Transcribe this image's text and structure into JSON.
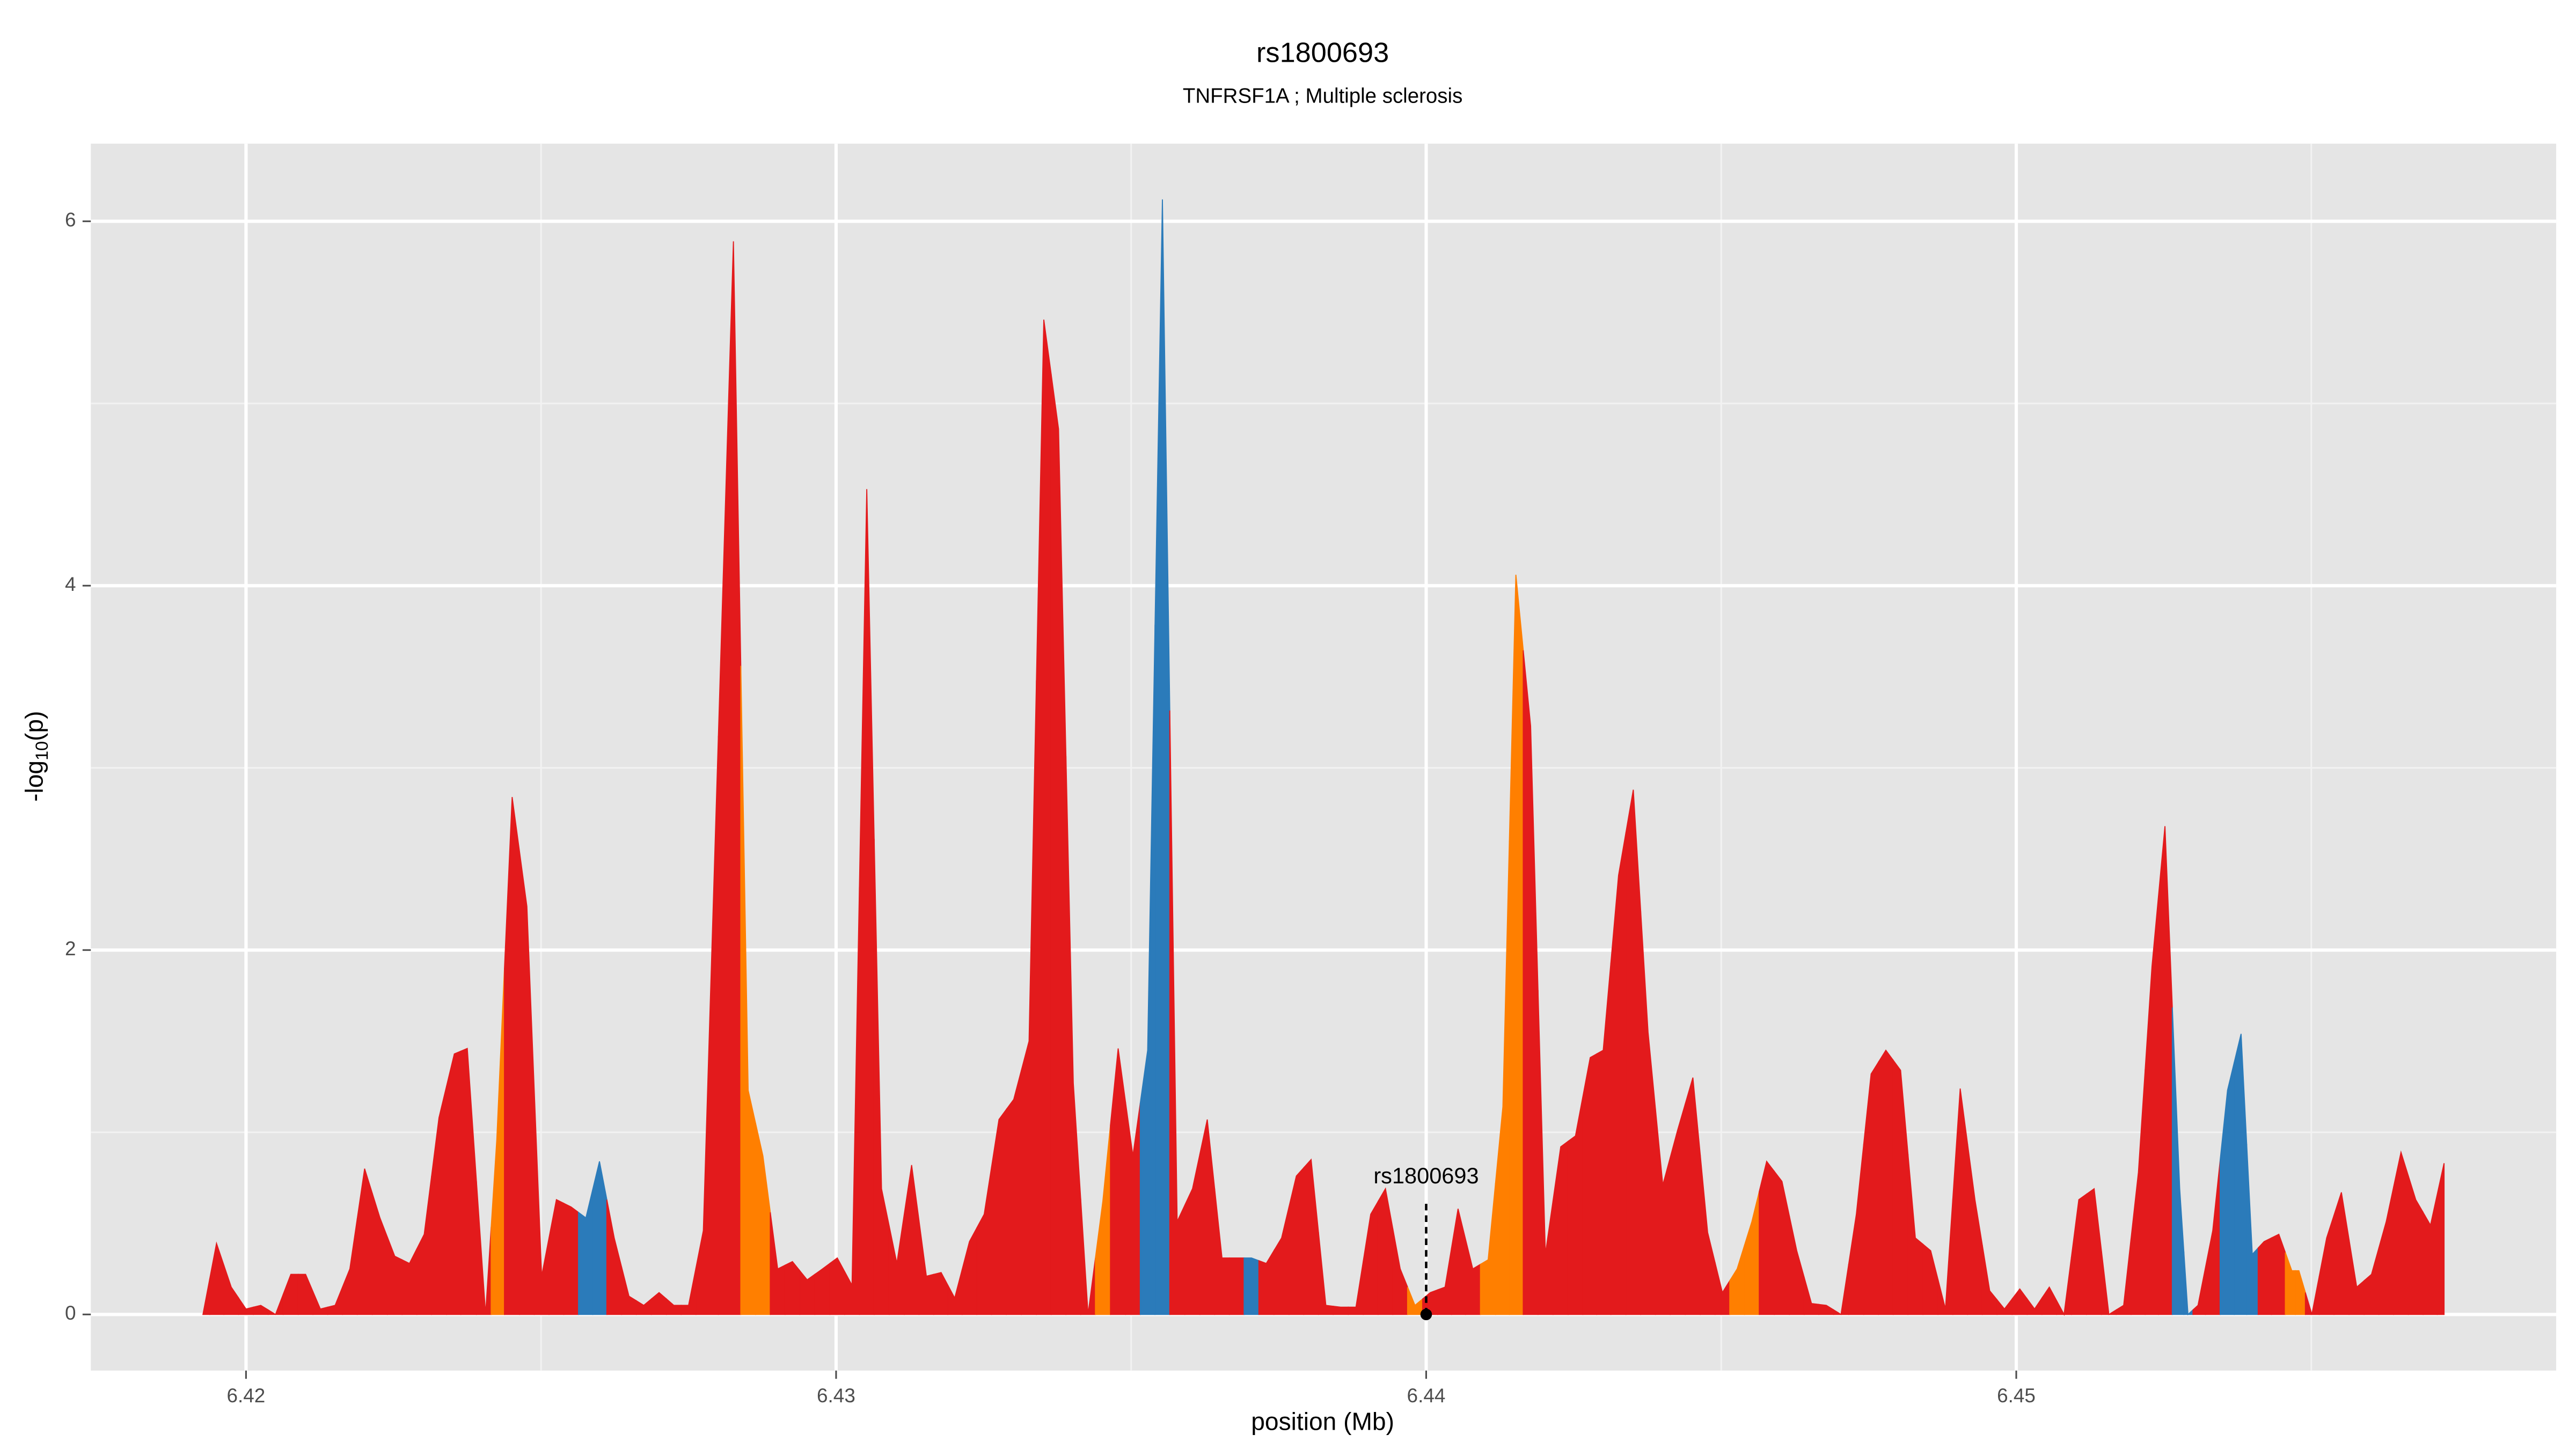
{
  "chart_data": {
    "type": "area",
    "title": "rs1800693",
    "subtitle": "TNFRSF1A ; Multiple sclerosis",
    "x_label": "position (Mb)",
    "y_label": {
      "text": "-log",
      "sub": "10",
      "after": "(p)"
    },
    "xlim": [
      6.41737,
      6.45915
    ],
    "ylim": [
      -0.308,
      6.426
    ],
    "xticks": [
      6.42,
      6.43,
      6.44,
      6.45
    ],
    "xminor": [
      6.425,
      6.435,
      6.445,
      6.455
    ],
    "yticks": [
      0,
      2,
      4,
      6
    ],
    "yminor": [
      1,
      3,
      5
    ],
    "grid": true,
    "x": [
      6.41927,
      6.4195,
      6.41975,
      6.42,
      6.42025,
      6.4205,
      6.42076,
      6.42101,
      6.42126,
      6.42151,
      6.42176,
      6.42201,
      6.42227,
      6.42252,
      6.42277,
      6.42302,
      6.42327,
      6.42353,
      6.42375,
      6.42406,
      6.42425,
      6.42451,
      6.42476,
      6.42501,
      6.42526,
      6.42551,
      6.42576,
      6.42599,
      6.42624,
      6.42649,
      6.42674,
      6.427,
      6.42725,
      6.4275,
      6.42775,
      6.42826,
      6.42851,
      6.42876,
      6.42901,
      6.42926,
      6.42951,
      6.42977,
      6.43002,
      6.43027,
      6.43052,
      6.43077,
      6.43103,
      6.43128,
      6.43153,
      6.43178,
      6.43201,
      6.43226,
      6.43251,
      6.43276,
      6.43301,
      6.43327,
      6.43352,
      6.43377,
      6.43402,
      6.43427,
      6.43452,
      6.43478,
      6.43503,
      6.43528,
      6.43553,
      6.43578,
      6.43604,
      6.43629,
      6.43654,
      6.43679,
      6.43704,
      6.43729,
      6.43755,
      6.4378,
      6.43805,
      6.4383,
      6.43855,
      6.43881,
      6.43906,
      6.43931,
      6.43956,
      6.43981,
      6.44007,
      6.44032,
      6.44054,
      6.44079,
      6.44105,
      6.4413,
      6.44152,
      6.44177,
      6.44202,
      6.44228,
      6.44253,
      6.44278,
      6.443,
      6.44326,
      6.44351,
      6.44376,
      6.44401,
      6.44426,
      6.44452,
      6.44477,
      6.44502,
      6.44527,
      6.44552,
      6.44577,
      6.44603,
      6.44628,
      6.44653,
      6.44678,
      6.44703,
      6.44729,
      6.44754,
      6.44779,
      6.44804,
      6.44829,
      6.44855,
      6.4488,
      6.44905,
      6.4493,
      6.44955,
      6.4498,
      6.45006,
      6.45031,
      6.45056,
      6.45081,
      6.45106,
      6.45132,
      6.45157,
      6.45182,
      6.45207,
      6.4523,
      6.45252,
      6.45277,
      6.45291,
      6.45308,
      6.45333,
      6.45358,
      6.45381,
      6.454,
      6.4542,
      6.45445,
      6.45467,
      6.45479,
      6.45501,
      6.45526,
      6.45551,
      6.45577,
      6.45602,
      6.45627,
      6.45652,
      6.45677,
      6.45702,
      6.45725
    ],
    "values": [
      0,
      0.39,
      0.15,
      0.03,
      0.05,
      0,
      0.22,
      0.22,
      0.03,
      0.05,
      0.25,
      0.8,
      0.53,
      0.32,
      0.28,
      0.44,
      1.08,
      1.43,
      1.46,
      0,
      0.96,
      2.84,
      2.24,
      0.21,
      0.63,
      0.59,
      0.53,
      0.84,
      0.42,
      0.1,
      0.05,
      0.12,
      0.05,
      0.05,
      0.46,
      5.89,
      1.23,
      0.87,
      0.25,
      0.29,
      0.19,
      0.25,
      0.31,
      0.16,
      4.53,
      0.69,
      0.28,
      0.82,
      0.21,
      0.23,
      0.09,
      0.4,
      0.55,
      1.07,
      1.18,
      1.5,
      5.46,
      4.86,
      1.27,
      0,
      0.62,
      1.46,
      0.87,
      1.45,
      6.12,
      0.51,
      0.69,
      1.07,
      0.31,
      0.31,
      0.31,
      0.28,
      0.42,
      0.76,
      0.85,
      0.05,
      0.04,
      0.04,
      0.55,
      0.69,
      0.25,
      0.05,
      0.12,
      0.15,
      0.58,
      0.25,
      0.3,
      1.14,
      4.06,
      3.23,
      0.33,
      0.92,
      0.98,
      1.41,
      1.45,
      2.41,
      2.88,
      1.55,
      0.71,
      1.01,
      1.3,
      0.45,
      0.12,
      0.25,
      0.51,
      0.84,
      0.73,
      0.35,
      0.06,
      0.05,
      0,
      0.55,
      1.32,
      1.45,
      1.34,
      0.42,
      0.35,
      0.03,
      1.24,
      0.63,
      0.13,
      0.03,
      0.14,
      0.03,
      0.15,
      0,
      0.63,
      0.69,
      0,
      0.05,
      0.78,
      1.91,
      2.68,
      0.69,
      0,
      0.05,
      0.46,
      1.23,
      1.54,
      0.33,
      0.4,
      0.44,
      0.24,
      0.24,
      0,
      0.42,
      0.67,
      0.15,
      0.22,
      0.51,
      0.89,
      0.63,
      0.49,
      0.83
    ],
    "colors": [
      "#e31a1c",
      "#e31a1c",
      "#e31a1c",
      "#e31a1c",
      "#e31a1c",
      "#e31a1c",
      "#e31a1c",
      "#e31a1c",
      "#e31a1c",
      "#e31a1c",
      "#e31a1c",
      "#e31a1c",
      "#e31a1c",
      "#e31a1c",
      "#e31a1c",
      "#e31a1c",
      "#e31a1c",
      "#e31a1c",
      "#e31a1c",
      "#e31a1c",
      "#ff7f00",
      "#e31a1c",
      "#e31a1c",
      "#e31a1c",
      "#e31a1c",
      "#e31a1c",
      "#2b7bba",
      "#2b7bba",
      "#e31a1c",
      "#e31a1c",
      "#e31a1c",
      "#e31a1c",
      "#e31a1c",
      "#e31a1c",
      "#e31a1c",
      "#e31a1c",
      "#ff7f00",
      "#ff7f00",
      "#e31a1c",
      "#e31a1c",
      "#e31a1c",
      "#e31a1c",
      "#e31a1c",
      "#e31a1c",
      "#e31a1c",
      "#e31a1c",
      "#e31a1c",
      "#e31a1c",
      "#e31a1c",
      "#e31a1c",
      "#e31a1c",
      "#e31a1c",
      "#e31a1c",
      "#e31a1c",
      "#e31a1c",
      "#e31a1c",
      "#e31a1c",
      "#e31a1c",
      "#e31a1c",
      "#e31a1c",
      "#ff7f00",
      "#e31a1c",
      "#e31a1c",
      "#2b7bba",
      "#2b7bba",
      "#e31a1c",
      "#e31a1c",
      "#e31a1c",
      "#e31a1c",
      "#e31a1c",
      "#2b7bba",
      "#e31a1c",
      "#e31a1c",
      "#e31a1c",
      "#e31a1c",
      "#e31a1c",
      "#e31a1c",
      "#e31a1c",
      "#e31a1c",
      "#e31a1c",
      "#e31a1c",
      "#ff7f00",
      "#e31a1c",
      "#e31a1c",
      "#e31a1c",
      "#e31a1c",
      "#ff7f00",
      "#ff7f00",
      "#ff7f00",
      "#e31a1c",
      "#e31a1c",
      "#e31a1c",
      "#e31a1c",
      "#e31a1c",
      "#e31a1c",
      "#e31a1c",
      "#e31a1c",
      "#e31a1c",
      "#e31a1c",
      "#e31a1c",
      "#e31a1c",
      "#e31a1c",
      "#e31a1c",
      "#ff7f00",
      "#ff7f00",
      "#e31a1c",
      "#e31a1c",
      "#e31a1c",
      "#e31a1c",
      "#e31a1c",
      "#e31a1c",
      "#e31a1c",
      "#e31a1c",
      "#e31a1c",
      "#e31a1c",
      "#e31a1c",
      "#e31a1c",
      "#e31a1c",
      "#e31a1c",
      "#e31a1c",
      "#e31a1c",
      "#e31a1c",
      "#e31a1c",
      "#e31a1c",
      "#e31a1c",
      "#e31a1c",
      "#e31a1c",
      "#e31a1c",
      "#e31a1c",
      "#e31a1c",
      "#e31a1c",
      "#e31a1c",
      "#e31a1c",
      "#2b7bba",
      "#2b7bba",
      "#e31a1c",
      "#e31a1c",
      "#2b7bba",
      "#2b7bba",
      "#2b7bba",
      "#e31a1c",
      "#e31a1c",
      "#ff7f00",
      "#ff7f00",
      "#e31a1c",
      "#e31a1c",
      "#e31a1c",
      "#e31a1c",
      "#e31a1c",
      "#e31a1c",
      "#e31a1c",
      "#e31a1c",
      "#e31a1c",
      "#e31a1c"
    ],
    "annotation": {
      "label": "rs1800693",
      "x": 6.44,
      "y": 0
    }
  }
}
